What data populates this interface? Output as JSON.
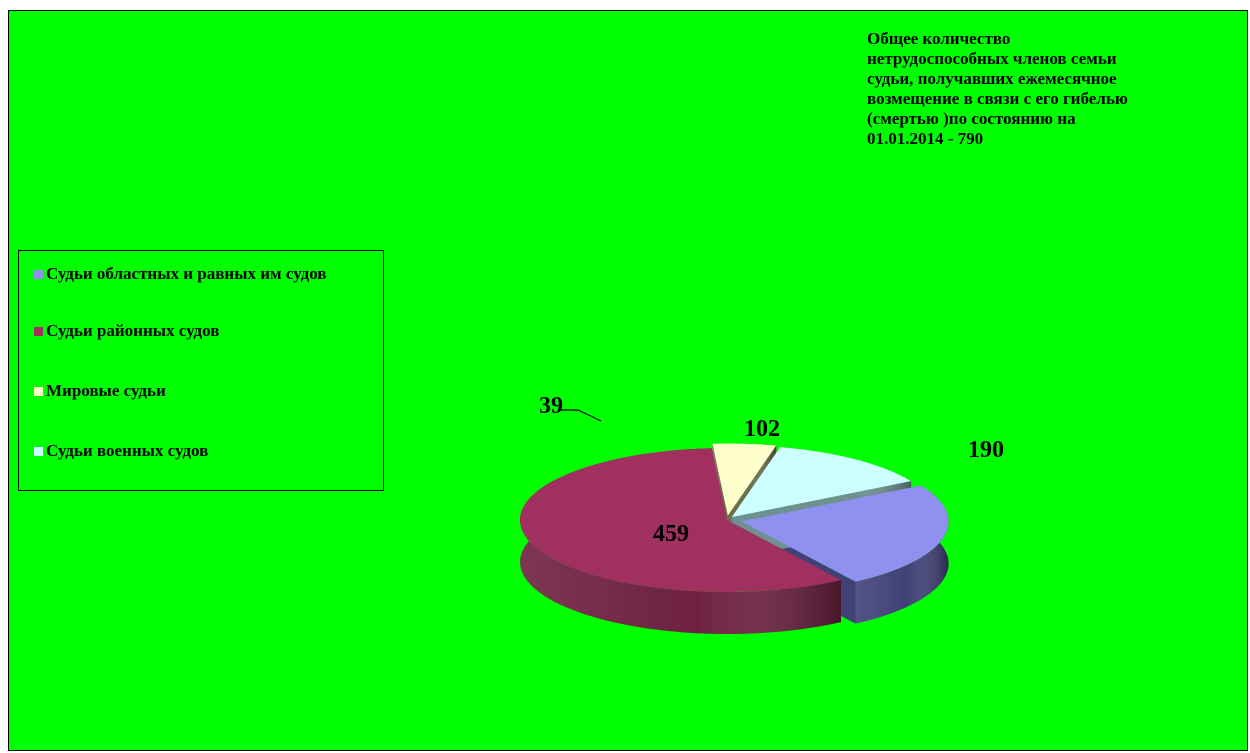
{
  "chart_data": {
    "type": "pie",
    "style": "3d-exploded",
    "title": "Общее количество нетрудоспособных членов семьи судьи, получавших ежемесячное возмещение в связи с его гибелью (смертью )по состоянию на 01.01.2014 - 790",
    "title_lines": [
      "Общее количество",
      "нетрудоспособных членов семьи",
      "судьи, получавших ежемесячное",
      "возмещение в связи с его гибелью",
      "(смертью )по состоянию на",
      "01.01.2014 - 790"
    ],
    "legend_placement": "left",
    "categories": [
      "Судьи областных и равных им судов",
      "Судьи районных судов",
      "Мировые судьи",
      "Судьи военных судов"
    ],
    "values": [
      190,
      459,
      39,
      102
    ],
    "data_labels": [
      "190",
      "459",
      "39",
      "102"
    ],
    "colors": [
      "#9090f0",
      "#a0305f",
      "#ffffcc",
      "#ccffff"
    ],
    "side_colors": [
      "#414178",
      "#6e2040",
      "#6e6e4e",
      "#6f9090"
    ],
    "background": "#00ff00"
  }
}
